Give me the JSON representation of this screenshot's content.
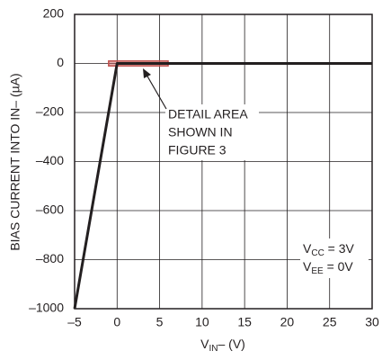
{
  "chart_data": {
    "type": "line",
    "x": [
      -5,
      0,
      30
    ],
    "values": [
      -1000,
      0,
      0
    ],
    "color": "#231f20",
    "xlim": [
      -5,
      30
    ],
    "ylim": [
      -1000,
      200
    ],
    "xticks": [
      {
        "value": -5,
        "label": "–5"
      },
      0,
      5,
      10,
      15,
      20,
      25,
      30
    ],
    "yticks": [
      {
        "value": -1000,
        "label": "–1000"
      },
      {
        "value": -800,
        "label": "–800"
      },
      {
        "value": -600,
        "label": "–600"
      },
      {
        "value": -400,
        "label": "–400"
      },
      {
        "value": -200,
        "label": "–200"
      },
      0,
      200
    ],
    "grid": true,
    "y_label": "BIAS CURRENT INTO IN– (µA)",
    "x_label": {
      "main": "V",
      "sub": "IN",
      "rest": "– (V)"
    },
    "highlight": {
      "xlim": [
        -1,
        6
      ],
      "ylim": [
        -10,
        10
      ],
      "color": "#c0504d"
    },
    "annotation": [
      "DETAIL AREA",
      "SHOWN IN",
      "FIGURE 3"
    ],
    "conditions": [
      {
        "main": "V",
        "sub": "CC",
        "rest": " = 3V"
      },
      {
        "main": "V",
        "sub": "EE",
        "rest": " = 0V"
      }
    ]
  }
}
